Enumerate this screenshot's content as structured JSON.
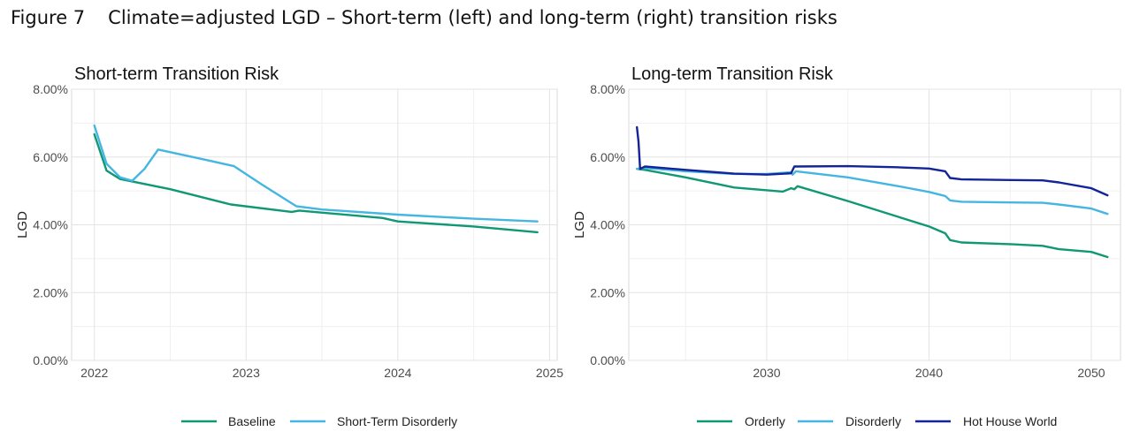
{
  "figure": {
    "number": "Figure 7",
    "title": "Climate=adjusted LGD – Short-term (left) and long-term (right) transition risks"
  },
  "chart_data": [
    {
      "type": "line",
      "title": "Short-term Transition Risk",
      "xlabel": "",
      "ylabel": "LGD",
      "xlim": [
        2021.85,
        2025.05
      ],
      "ylim": [
        0,
        0.08
      ],
      "xticks": [
        2022,
        2023,
        2024,
        2025
      ],
      "xtick_labels": [
        "2022",
        "2023",
        "2024",
        "2025"
      ],
      "yticks": [
        0,
        0.02,
        0.04,
        0.06,
        0.08
      ],
      "ytick_labels": [
        "0.00%",
        "2.00%",
        "4.00%",
        "6.00%",
        "8.00%"
      ],
      "grid": true,
      "legend_position": "bottom",
      "series": [
        {
          "name": "Baseline",
          "color": "#109874",
          "points": [
            [
              2022.0,
              0.0667
            ],
            [
              2022.08,
              0.056
            ],
            [
              2022.17,
              0.0535
            ],
            [
              2022.5,
              0.0505
            ],
            [
              2022.9,
              0.046
            ],
            [
              2023.3,
              0.0438
            ],
            [
              2023.35,
              0.0442
            ],
            [
              2023.9,
              0.042
            ],
            [
              2024.0,
              0.041
            ],
            [
              2024.5,
              0.0395
            ],
            [
              2024.92,
              0.0378
            ]
          ]
        },
        {
          "name": "Short-Term Disorderly",
          "color": "#45b6e1",
          "points": [
            [
              2022.0,
              0.0693
            ],
            [
              2022.08,
              0.058
            ],
            [
              2022.17,
              0.054
            ],
            [
              2022.25,
              0.053
            ],
            [
              2022.33,
              0.0565
            ],
            [
              2022.42,
              0.0622
            ],
            [
              2022.75,
              0.059
            ],
            [
              2022.92,
              0.0573
            ],
            [
              2023.1,
              0.052
            ],
            [
              2023.33,
              0.0455
            ],
            [
              2023.5,
              0.0445
            ],
            [
              2024.0,
              0.043
            ],
            [
              2024.5,
              0.0418
            ],
            [
              2024.92,
              0.041
            ]
          ]
        }
      ]
    },
    {
      "type": "line",
      "title": "Long-term Transition Risk",
      "xlabel": "",
      "ylabel": "LGD",
      "xlim": [
        2021.5,
        2051.8
      ],
      "ylim": [
        0,
        0.08
      ],
      "xticks": [
        2030,
        2040,
        2050
      ],
      "xtick_labels": [
        "2030",
        "2040",
        "2050"
      ],
      "yticks": [
        0,
        0.02,
        0.04,
        0.06,
        0.08
      ],
      "ytick_labels": [
        "0.00%",
        "2.00%",
        "4.00%",
        "6.00%",
        "8.00%"
      ],
      "grid": true,
      "legend_position": "bottom",
      "series": [
        {
          "name": "Orderly",
          "color": "#109874",
          "points": [
            [
              2022.0,
              0.0565
            ],
            [
              2022.5,
              0.0562
            ],
            [
              2025,
              0.054
            ],
            [
              2028,
              0.051
            ],
            [
              2031,
              0.0498
            ],
            [
              2031.5,
              0.0508
            ],
            [
              2031.7,
              0.0505
            ],
            [
              2031.9,
              0.0514
            ],
            [
              2035,
              0.047
            ],
            [
              2038,
              0.0425
            ],
            [
              2040,
              0.0395
            ],
            [
              2041,
              0.0375
            ],
            [
              2041.3,
              0.0355
            ],
            [
              2042,
              0.0348
            ],
            [
              2045,
              0.0343
            ],
            [
              2047,
              0.0338
            ],
            [
              2048,
              0.0328
            ],
            [
              2050,
              0.032
            ],
            [
              2051,
              0.0305
            ]
          ]
        },
        {
          "name": "Disorderly",
          "color": "#45b6e1",
          "points": [
            [
              2022.0,
              0.0565
            ],
            [
              2022.5,
              0.0568
            ],
            [
              2025,
              0.0558
            ],
            [
              2028,
              0.055
            ],
            [
              2030,
              0.055
            ],
            [
              2031.5,
              0.0555
            ],
            [
              2031.6,
              0.0548
            ],
            [
              2031.8,
              0.0558
            ],
            [
              2035,
              0.054
            ],
            [
              2038,
              0.0515
            ],
            [
              2040,
              0.0497
            ],
            [
              2041,
              0.0485
            ],
            [
              2041.3,
              0.0472
            ],
            [
              2042,
              0.0468
            ],
            [
              2045,
              0.0466
            ],
            [
              2047,
              0.0465
            ],
            [
              2048,
              0.046
            ],
            [
              2050,
              0.0448
            ],
            [
              2051,
              0.0432
            ]
          ]
        },
        {
          "name": "Hot House World",
          "color": "#13249a",
          "points": [
            [
              2022.0,
              0.0688
            ],
            [
              2022.1,
              0.0645
            ],
            [
              2022.2,
              0.0565
            ],
            [
              2022.5,
              0.0572
            ],
            [
              2025,
              0.0562
            ],
            [
              2028,
              0.0551
            ],
            [
              2030,
              0.0548
            ],
            [
              2031.5,
              0.0552
            ],
            [
              2031.7,
              0.0572
            ],
            [
              2035,
              0.0573
            ],
            [
              2038,
              0.057
            ],
            [
              2040,
              0.0566
            ],
            [
              2041,
              0.0558
            ],
            [
              2041.3,
              0.0538
            ],
            [
              2042,
              0.0534
            ],
            [
              2045,
              0.0532
            ],
            [
              2047,
              0.0531
            ],
            [
              2048,
              0.0525
            ],
            [
              2050,
              0.0508
            ],
            [
              2051,
              0.0487
            ]
          ]
        }
      ]
    }
  ]
}
